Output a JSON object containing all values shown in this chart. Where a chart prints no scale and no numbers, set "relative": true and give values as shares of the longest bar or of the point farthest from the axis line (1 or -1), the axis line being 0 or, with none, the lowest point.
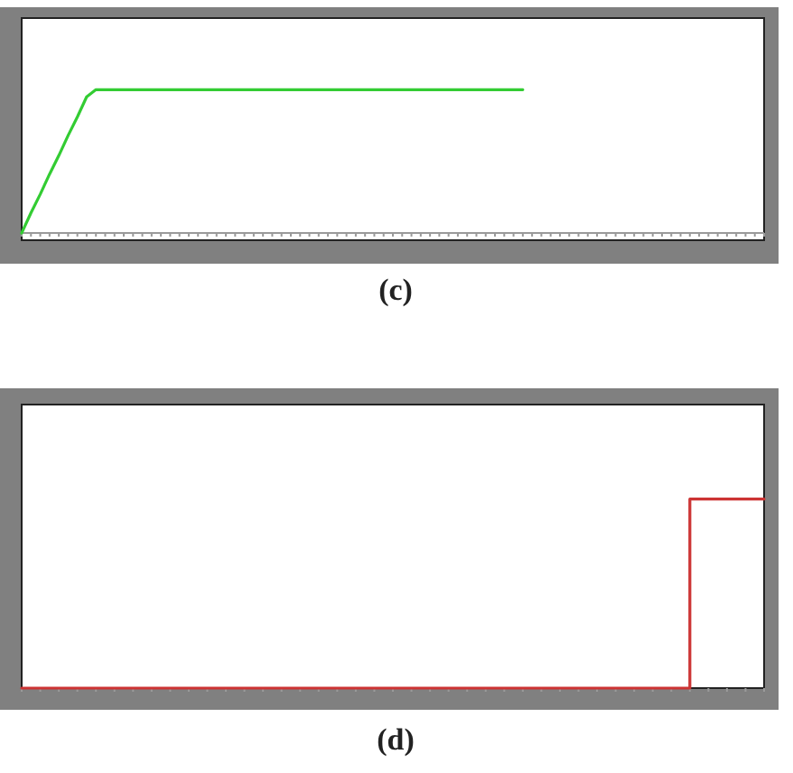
{
  "chart_data": [
    {
      "type": "line",
      "title": "(c)",
      "relative": true,
      "color": "#33cc33",
      "categories": [
        null,
        null,
        null,
        null,
        null,
        null,
        null,
        null,
        null,
        null,
        null,
        null,
        null,
        null,
        null,
        null,
        null,
        null,
        null,
        null,
        null,
        null,
        null,
        null,
        null,
        null,
        null,
        null,
        null,
        null,
        null,
        null,
        null,
        null,
        null,
        null,
        null,
        null,
        null,
        null,
        null,
        null,
        null,
        null,
        null,
        null,
        null,
        null,
        null,
        null,
        null,
        null,
        null,
        null,
        null,
        null,
        null,
        null,
        null,
        null,
        null,
        null,
        null,
        null,
        null,
        null,
        null,
        null,
        null,
        null,
        null,
        null,
        null,
        null,
        null,
        null,
        null,
        null,
        null,
        null,
        null
      ],
      "values": [
        0,
        0.14,
        0.27,
        0.41,
        0.54,
        0.68,
        0.81,
        0.95,
        1,
        1,
        1,
        1,
        1,
        1,
        1,
        1,
        1,
        1,
        1,
        1,
        1,
        1,
        1,
        1,
        1,
        1,
        1,
        1,
        1,
        1,
        1,
        1,
        1,
        1,
        1,
        1,
        1,
        1,
        1,
        1,
        1,
        1,
        1,
        1,
        1,
        1,
        1,
        1,
        1,
        1,
        1,
        1,
        1,
        1,
        1,
        null,
        null,
        null,
        null,
        null,
        null,
        null,
        null,
        null,
        null,
        null,
        null,
        null,
        null,
        null,
        null,
        null,
        null,
        null,
        null,
        null,
        null,
        null,
        null,
        null,
        null
      ]
    },
    {
      "type": "step",
      "title": "(d)",
      "relative": true,
      "color": "#cc3333",
      "categories": [
        null,
        null,
        null,
        null,
        null,
        null,
        null,
        null,
        null,
        null,
        null,
        null,
        null,
        null,
        null,
        null,
        null,
        null,
        null,
        null,
        null,
        null,
        null,
        null,
        null,
        null,
        null,
        null,
        null,
        null,
        null,
        null,
        null,
        null,
        null,
        null,
        null,
        null,
        null,
        null,
        null
      ],
      "values": [
        0,
        0,
        0,
        0,
        0,
        0,
        0,
        0,
        0,
        0,
        0,
        0,
        0,
        0,
        0,
        0,
        0,
        0,
        0,
        0,
        0,
        0,
        0,
        0,
        0,
        0,
        0,
        0,
        0,
        0,
        0,
        0,
        0,
        0,
        0,
        0,
        1,
        1,
        1,
        1,
        1
      ]
    }
  ]
}
